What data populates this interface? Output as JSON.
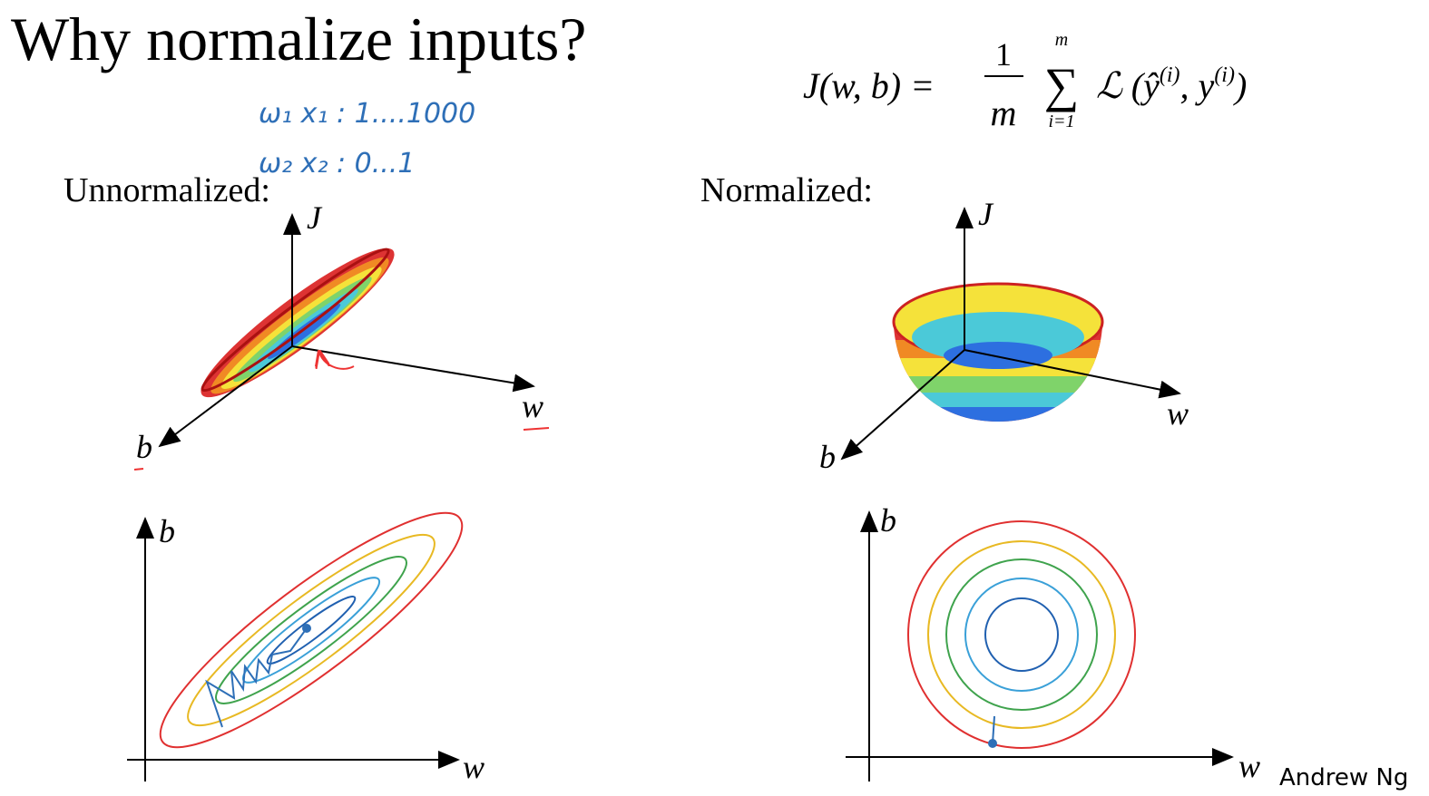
{
  "header": {
    "title": "Why normalize inputs?"
  },
  "formula": {
    "lhs": "J(w, b) =",
    "numerator": "1",
    "denominator": "m",
    "sum": "∑",
    "upper": "m",
    "lower": "i=1",
    "term": "ℒ (ŷ",
    "sup1": "(i)",
    "mid": ", y",
    "sup2": "(i)",
    "close": ")"
  },
  "notes": [
    "ω₁   x₁ : 1....1000",
    "ω₂   x₂ : 0...1"
  ],
  "panels": {
    "unnormalized": {
      "label": "Unnormalized:",
      "surface_axes": {
        "j": "J",
        "w": "w",
        "b": "b"
      },
      "contour_axes": {
        "b": "b",
        "w": "w"
      }
    },
    "normalized": {
      "label": "Normalized:",
      "surface_axes": {
        "j": "J",
        "w": "w",
        "b": "b"
      },
      "contour_axes": {
        "b": "b",
        "w": "w"
      }
    }
  },
  "footer": "Andrew Ng"
}
